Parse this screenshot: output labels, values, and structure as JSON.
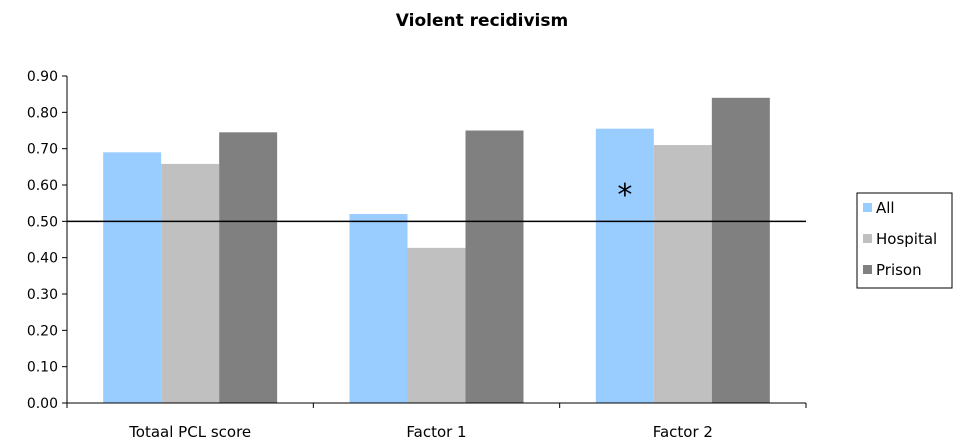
{
  "chart_data": {
    "type": "bar",
    "title": "Violent recidivism",
    "categories": [
      "Totaal PCL score",
      "Factor 1",
      "Factor 2"
    ],
    "series": [
      {
        "name": "All",
        "color": "#99ccff",
        "values": [
          0.69,
          0.52,
          0.755
        ]
      },
      {
        "name": "Hospital",
        "color": "#c0c0c0",
        "values": [
          0.658,
          0.427,
          0.71
        ]
      },
      {
        "name": "Prison",
        "color": "#808080",
        "values": [
          0.745,
          0.75,
          0.84
        ]
      }
    ],
    "ylim": [
      0,
      0.9
    ],
    "ystep": 0.1,
    "ytick_labels": [
      "0.00",
      "0.10",
      "0.20",
      "0.30",
      "0.40",
      "0.50",
      "0.60",
      "0.70",
      "0.80",
      "0.90"
    ],
    "reference_line": 0.5,
    "annotation": {
      "text": "*",
      "category": "Factor 2",
      "series": "All",
      "y": 0.6
    },
    "legend_position": "right",
    "grid": false,
    "xlabel": "",
    "ylabel": ""
  }
}
